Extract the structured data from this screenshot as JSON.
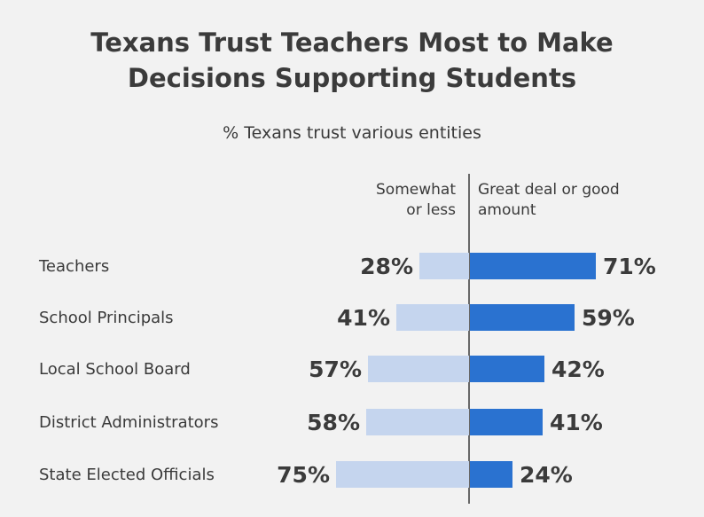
{
  "chart_data": {
    "type": "bar",
    "title_lines": [
      "Texans Trust Teachers Most to Make",
      "Decisions Supporting Students"
    ],
    "subtitle": "% Texans trust various entities",
    "categories": [
      "Teachers",
      "School Principals",
      "Local School Board",
      "District Administrators",
      "State Elected Officials"
    ],
    "series": [
      {
        "name_lines": [
          "Somewhat",
          "or less"
        ],
        "values": [
          28,
          41,
          57,
          58,
          75
        ],
        "value_labels": [
          "28%",
          "41%",
          "57%",
          "58%",
          "75%"
        ],
        "color": "#c5d5ee",
        "direction": "left"
      },
      {
        "name_lines": [
          "Great deal or good",
          "amount"
        ],
        "values": [
          71,
          59,
          42,
          41,
          24
        ],
        "value_labels": [
          "71%",
          "59%",
          "42%",
          "41%",
          "24%"
        ],
        "color": "#2a72d0",
        "direction": "right"
      }
    ],
    "xlim": [
      0,
      100
    ]
  }
}
